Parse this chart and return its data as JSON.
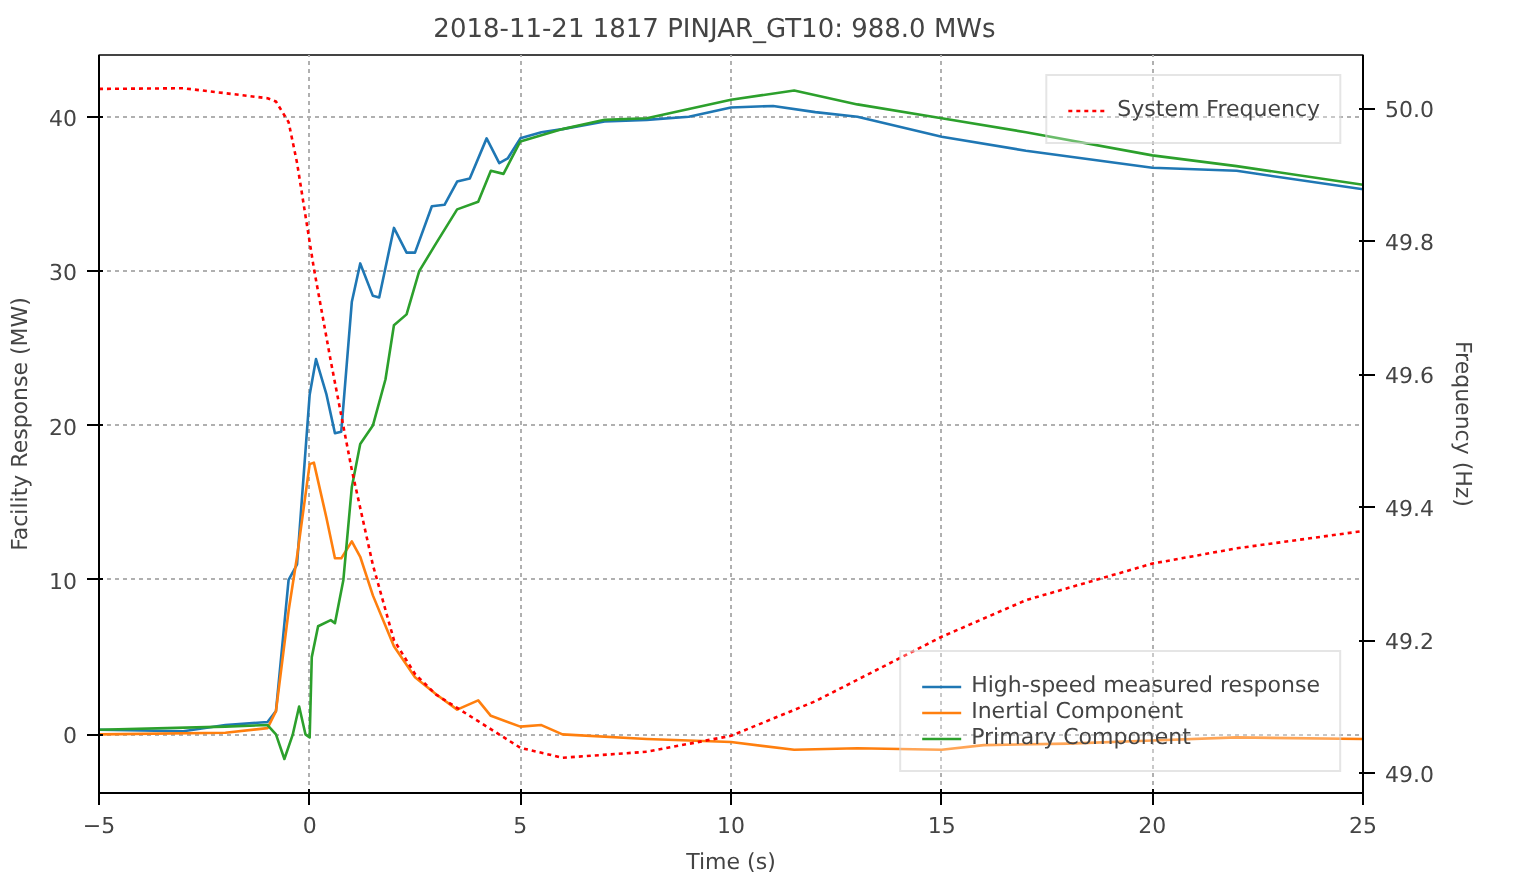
{
  "chart_data": {
    "type": "line",
    "title": "2018-11-21 1817     PINJAR_GT10: 988.0 MWs",
    "xlabel": "Time (s)",
    "ylabel": "Facility Response (MW)",
    "y2label": "Frequency (Hz)",
    "xlim": [
      -5,
      25
    ],
    "xticks": [
      -5,
      0,
      5,
      10,
      15,
      20,
      25
    ],
    "ylim": [
      -3.8,
      44
    ],
    "yticks": [
      0,
      10,
      20,
      30,
      40
    ],
    "y2lim": [
      48.97,
      50.08
    ],
    "y2ticks": [
      {
        "value": 49.0,
        "label": "49.0"
      },
      {
        "value": 49.2,
        "label": "49.2"
      },
      {
        "value": 49.4,
        "label": "49.4"
      },
      {
        "value": 49.6,
        "label": "49.6"
      },
      {
        "value": 49.8,
        "label": "49.8"
      },
      {
        "value": 50.0,
        "label": "50.0"
      }
    ],
    "grid": true,
    "legend": "bottom right",
    "marker": "none",
    "series": [
      {
        "name": "High-speed measured response",
        "color": "#1f77b4",
        "x": [
          -5,
          -3,
          -2,
          -1,
          -0.8,
          -0.5,
          -0.3,
          0,
          0.15,
          0.4,
          0.6,
          0.75,
          1.0,
          1.2,
          1.5,
          1.65,
          2,
          2.3,
          2.5,
          2.9,
          3.2,
          3.5,
          3.8,
          4.2,
          4.5,
          4.7,
          5,
          5.5,
          6,
          7,
          8,
          9,
          10,
          11,
          12,
          13,
          15,
          17,
          20,
          22,
          25
        ],
        "values": [
          0.3,
          0.2,
          0.6,
          0.8,
          1.5,
          10,
          11,
          22,
          24.3,
          22,
          19.5,
          19.6,
          28,
          30.5,
          28.4,
          28.3,
          32.8,
          31.2,
          31.2,
          34.2,
          34.3,
          35.8,
          36.0,
          38.6,
          37.0,
          37.3,
          38.6,
          39.0,
          39.2,
          39.7,
          39.8,
          40.0,
          40.6,
          40.7,
          40.3,
          40.0,
          38.7,
          37.8,
          36.7,
          36.5,
          35.3
        ]
      },
      {
        "name": "Inertial Component",
        "color": "#ff7f0e",
        "x": [
          -5,
          -2,
          -1,
          -0.8,
          -0.5,
          -0.3,
          0,
          0.1,
          0.4,
          0.6,
          0.75,
          1.0,
          1.2,
          1.5,
          2,
          2.5,
          3,
          3.5,
          4,
          4.3,
          5,
          5.5,
          6,
          8,
          10,
          11.5,
          13,
          15,
          16,
          18,
          20,
          22,
          25
        ],
        "values": [
          0,
          0.1,
          0.4,
          1.5,
          8,
          11.5,
          17.5,
          17.6,
          14,
          11.4,
          11.4,
          12.5,
          11.5,
          9,
          5.7,
          3.7,
          2.6,
          1.6,
          2.2,
          1.2,
          0.5,
          0.6,
          0,
          -0.3,
          -0.5,
          -1.0,
          -0.9,
          -1.0,
          -0.7,
          -0.6,
          -0.4,
          -0.2,
          -0.3
        ]
      },
      {
        "name": "Primary Component",
        "color": "#2ca02c",
        "x": [
          -5,
          -2,
          -1,
          -0.8,
          -0.6,
          -0.4,
          -0.25,
          -0.1,
          0,
          0.05,
          0.2,
          0.5,
          0.6,
          0.8,
          1,
          1.2,
          1.5,
          1.8,
          2,
          2.3,
          2.6,
          3,
          3.5,
          4,
          4.3,
          4.6,
          5,
          6,
          7,
          8,
          9,
          10,
          11.5,
          13,
          15,
          17,
          20,
          22,
          25
        ],
        "values": [
          0.3,
          0.5,
          0.6,
          0,
          -1.6,
          0,
          1.8,
          0,
          -0.2,
          5,
          7,
          7.4,
          7.2,
          10,
          16,
          18.8,
          20,
          23,
          26.5,
          27.2,
          30,
          31.8,
          34,
          34.5,
          36.5,
          36.3,
          38.4,
          39.2,
          39.8,
          39.9,
          40.5,
          41.1,
          41.7,
          40.8,
          39.9,
          39.0,
          37.5,
          36.8,
          35.6
        ]
      },
      {
        "name": "System Frequency",
        "color": "#ff0000",
        "axis": "y2",
        "line_style": "dotted",
        "x": [
          -5,
          -3,
          -1,
          -0.8,
          -0.5,
          -0.3,
          0.1,
          0.5,
          1,
          1.5,
          2,
          2.5,
          3,
          4,
          5,
          6,
          8,
          10,
          12,
          15,
          17,
          20,
          22,
          25
        ],
        "values": [
          50.029,
          50.03,
          50.015,
          50.01,
          49.979,
          49.918,
          49.759,
          49.62,
          49.456,
          49.313,
          49.2,
          49.149,
          49.118,
          49.078,
          49.038,
          49.023,
          49.032,
          49.056,
          49.108,
          49.205,
          49.26,
          49.315,
          49.338,
          49.364
        ]
      }
    ]
  }
}
